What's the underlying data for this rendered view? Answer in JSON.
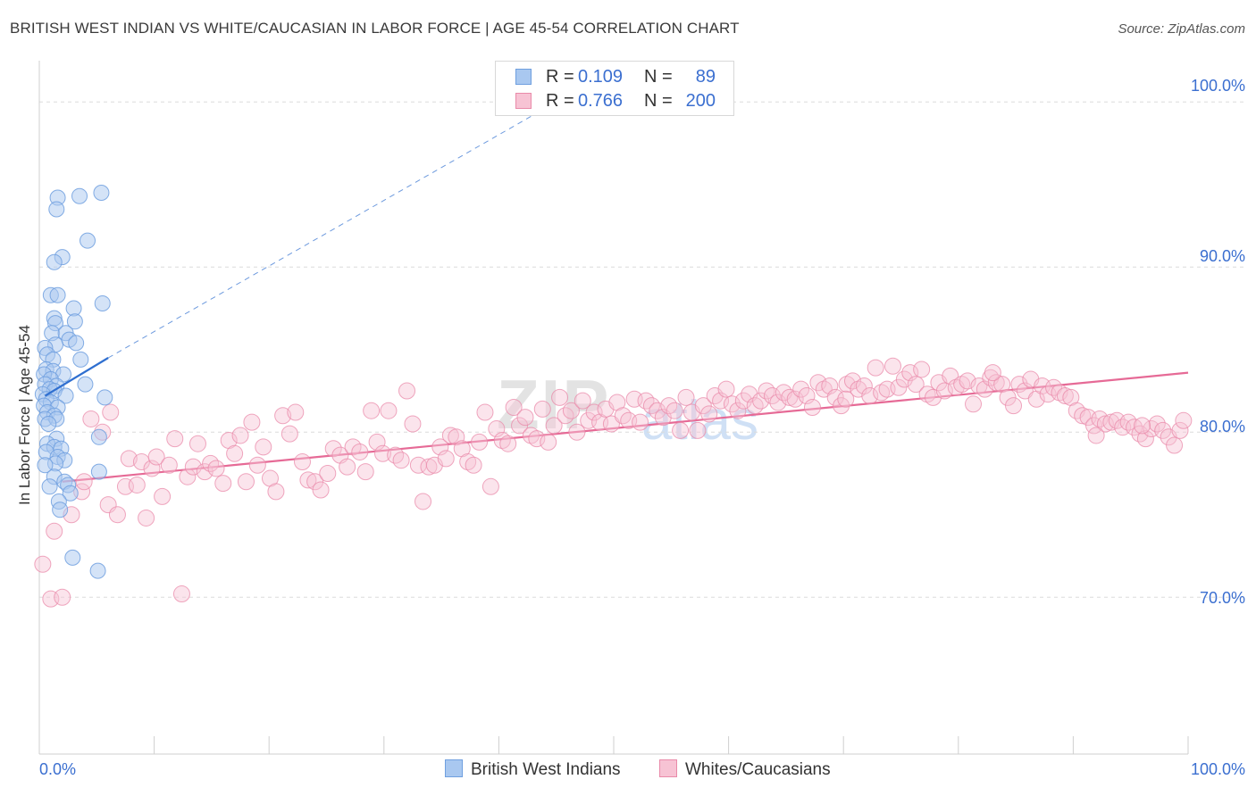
{
  "title": "BRITISH WEST INDIAN VS WHITE/CAUCASIAN IN LABOR FORCE | AGE 45-54 CORRELATION CHART",
  "source": "Source: ZipAtlas.com",
  "watermark": {
    "zip": "ZIP",
    "atlas": "atlas"
  },
  "legend_top": {
    "rows": [
      {
        "r_label": "R =",
        "r_value": "0.109",
        "n_label": "N =",
        "n_value": "89",
        "color": "#a9c8f0",
        "border": "#6f9fdf"
      },
      {
        "r_label": "R =",
        "r_value": "0.766",
        "n_label": "N =",
        "n_value": "200",
        "color": "#f7c3d4",
        "border": "#e98aa9"
      }
    ]
  },
  "legend_bottom": [
    {
      "label": "British West Indians",
      "color": "#a9c8f0",
      "border": "#6f9fdf"
    },
    {
      "label": "Whites/Caucasians",
      "color": "#f7c3d4",
      "border": "#e98aa9"
    }
  ],
  "chart_data": {
    "type": "scatter",
    "title": "BRITISH WEST INDIAN VS WHITE/CAUCASIAN IN LABOR FORCE | AGE 45-54 CORRELATION CHART",
    "xlabel": "",
    "ylabel": "In Labor Force | Age 45-54",
    "x_tick_labels": [
      "0.0%",
      "100.0%"
    ],
    "y_tick_labels": [
      "100.0%",
      "90.0%",
      "80.0%",
      "70.0%"
    ],
    "y_ticks": [
      100,
      90,
      80,
      70
    ],
    "xlim": [
      0,
      100
    ],
    "ylim": [
      60.5,
      102.5
    ],
    "grid": true,
    "colors": {
      "blue": "#6f9fdf",
      "blue_fill": "#a9c8f0",
      "pink": "#e98aa9",
      "pink_fill": "#f7c3d4",
      "blue_line": "#2f6fd0",
      "pink_line": "#e66a96"
    },
    "series": [
      {
        "name": "British West Indians",
        "r": 0.109,
        "n": 89,
        "trend": {
          "x": [
            0.5,
            6.0
          ],
          "y": [
            82.2,
            84.5
          ],
          "extension_to": [
            45,
            100
          ]
        },
        "points": [
          [
            1.6,
            94.2
          ],
          [
            3.5,
            94.3
          ],
          [
            5.4,
            94.5
          ],
          [
            1.5,
            93.5
          ],
          [
            4.2,
            91.6
          ],
          [
            2.0,
            90.6
          ],
          [
            1.3,
            90.3
          ],
          [
            1.0,
            88.3
          ],
          [
            1.6,
            88.3
          ],
          [
            5.5,
            87.8
          ],
          [
            3.0,
            87.5
          ],
          [
            1.3,
            86.9
          ],
          [
            1.4,
            86.6
          ],
          [
            3.1,
            86.7
          ],
          [
            1.1,
            86.0
          ],
          [
            2.3,
            86.0
          ],
          [
            2.6,
            85.6
          ],
          [
            3.2,
            85.4
          ],
          [
            1.4,
            85.3
          ],
          [
            0.5,
            85.1
          ],
          [
            0.7,
            84.7
          ],
          [
            1.2,
            84.4
          ],
          [
            3.6,
            84.4
          ],
          [
            0.6,
            83.8
          ],
          [
            1.2,
            83.7
          ],
          [
            0.4,
            83.5
          ],
          [
            2.1,
            83.5
          ],
          [
            1.0,
            83.2
          ],
          [
            0.5,
            82.9
          ],
          [
            1.5,
            82.8
          ],
          [
            0.9,
            82.6
          ],
          [
            4.0,
            82.9
          ],
          [
            1.3,
            82.5
          ],
          [
            0.3,
            82.3
          ],
          [
            2.3,
            82.2
          ],
          [
            0.6,
            82.0
          ],
          [
            5.7,
            82.1
          ],
          [
            1.0,
            81.8
          ],
          [
            0.4,
            81.6
          ],
          [
            1.6,
            81.5
          ],
          [
            0.7,
            81.2
          ],
          [
            1.3,
            81.0
          ],
          [
            0.5,
            80.8
          ],
          [
            1.5,
            80.8
          ],
          [
            0.8,
            80.5
          ],
          [
            5.2,
            79.7
          ],
          [
            1.5,
            79.6
          ],
          [
            0.7,
            79.3
          ],
          [
            1.3,
            79.1
          ],
          [
            1.9,
            79.0
          ],
          [
            0.6,
            78.8
          ],
          [
            1.6,
            78.5
          ],
          [
            2.2,
            78.3
          ],
          [
            1.4,
            78.1
          ],
          [
            0.5,
            78.0
          ],
          [
            5.2,
            77.6
          ],
          [
            1.3,
            77.3
          ],
          [
            2.2,
            77.0
          ],
          [
            2.5,
            76.8
          ],
          [
            0.9,
            76.7
          ],
          [
            2.7,
            76.3
          ],
          [
            1.7,
            75.8
          ],
          [
            1.8,
            75.3
          ],
          [
            2.9,
            72.4
          ],
          [
            5.1,
            71.6
          ]
        ]
      },
      {
        "name": "Whites/Caucasians",
        "r": 0.766,
        "n": 200,
        "trend": {
          "x": [
            2.0,
            100
          ],
          "y": [
            77.0,
            83.6
          ]
        },
        "points": [
          [
            0.3,
            72.0
          ],
          [
            1.0,
            69.9
          ],
          [
            2.0,
            70.0
          ],
          [
            1.3,
            74.0
          ],
          [
            2.8,
            75.0
          ],
          [
            3.7,
            76.4
          ],
          [
            3.9,
            77.0
          ],
          [
            4.5,
            80.8
          ],
          [
            5.5,
            80.0
          ],
          [
            6.2,
            81.2
          ],
          [
            6.0,
            75.6
          ],
          [
            6.8,
            75.0
          ],
          [
            7.5,
            76.7
          ],
          [
            7.8,
            78.4
          ],
          [
            8.5,
            76.8
          ],
          [
            8.9,
            78.2
          ],
          [
            9.3,
            74.8
          ],
          [
            9.8,
            77.8
          ],
          [
            10.2,
            78.5
          ],
          [
            10.7,
            76.1
          ],
          [
            11.3,
            78.0
          ],
          [
            11.8,
            79.6
          ],
          [
            12.4,
            70.2
          ],
          [
            12.9,
            77.3
          ],
          [
            13.4,
            77.9
          ],
          [
            13.8,
            79.3
          ],
          [
            14.4,
            77.6
          ],
          [
            14.9,
            78.1
          ],
          [
            15.4,
            77.8
          ],
          [
            16.0,
            76.9
          ],
          [
            16.5,
            79.5
          ],
          [
            17.0,
            78.7
          ],
          [
            17.5,
            79.8
          ],
          [
            18.0,
            77.0
          ],
          [
            18.5,
            80.6
          ],
          [
            19.0,
            78.0
          ],
          [
            19.5,
            79.1
          ],
          [
            20.1,
            77.2
          ],
          [
            20.6,
            76.4
          ],
          [
            21.2,
            81.0
          ],
          [
            21.8,
            79.9
          ],
          [
            22.3,
            81.2
          ],
          [
            22.9,
            78.2
          ],
          [
            23.4,
            77.1
          ],
          [
            24.0,
            77.0
          ],
          [
            24.5,
            76.5
          ],
          [
            25.1,
            77.5
          ],
          [
            25.6,
            79.0
          ],
          [
            26.2,
            78.6
          ],
          [
            26.8,
            77.9
          ],
          [
            27.3,
            79.1
          ],
          [
            27.9,
            78.8
          ],
          [
            28.4,
            77.6
          ],
          [
            28.9,
            81.3
          ],
          [
            29.4,
            79.4
          ],
          [
            29.9,
            78.7
          ],
          [
            30.4,
            81.3
          ],
          [
            31.0,
            78.6
          ],
          [
            31.5,
            78.3
          ],
          [
            32.0,
            82.5
          ],
          [
            32.5,
            80.5
          ],
          [
            33.0,
            78.0
          ],
          [
            33.4,
            75.8
          ],
          [
            33.9,
            77.9
          ],
          [
            34.4,
            78.0
          ],
          [
            34.9,
            79.1
          ],
          [
            35.4,
            78.4
          ],
          [
            35.8,
            79.8
          ],
          [
            36.3,
            79.7
          ],
          [
            36.8,
            79.0
          ],
          [
            37.3,
            78.2
          ],
          [
            37.8,
            78.0
          ],
          [
            38.3,
            79.4
          ],
          [
            38.8,
            81.2
          ],
          [
            39.3,
            76.7
          ],
          [
            39.8,
            80.2
          ],
          [
            40.3,
            79.5
          ],
          [
            40.8,
            79.3
          ],
          [
            41.3,
            81.5
          ],
          [
            41.8,
            80.4
          ],
          [
            42.3,
            80.9
          ],
          [
            42.8,
            79.8
          ],
          [
            43.3,
            79.6
          ],
          [
            43.8,
            81.4
          ],
          [
            44.3,
            79.4
          ],
          [
            44.8,
            80.4
          ],
          [
            45.3,
            82.1
          ],
          [
            45.8,
            81.0
          ],
          [
            46.3,
            81.3
          ],
          [
            46.8,
            80.0
          ],
          [
            47.3,
            81.9
          ],
          [
            47.8,
            80.7
          ],
          [
            48.3,
            81.2
          ],
          [
            48.8,
            80.6
          ],
          [
            49.3,
            81.4
          ],
          [
            49.8,
            80.5
          ],
          [
            50.3,
            81.8
          ],
          [
            50.8,
            81.0
          ],
          [
            51.3,
            80.7
          ],
          [
            51.8,
            82.0
          ],
          [
            52.3,
            80.6
          ],
          [
            52.8,
            81.9
          ],
          [
            53.3,
            81.6
          ],
          [
            53.8,
            81.3
          ],
          [
            54.3,
            80.9
          ],
          [
            54.8,
            81.6
          ],
          [
            55.3,
            81.3
          ],
          [
            55.8,
            80.1
          ],
          [
            56.3,
            82.1
          ],
          [
            56.8,
            81.2
          ],
          [
            57.3,
            80.1
          ],
          [
            57.8,
            81.6
          ],
          [
            58.3,
            81.1
          ],
          [
            58.8,
            82.2
          ],
          [
            59.3,
            81.9
          ],
          [
            59.8,
            82.6
          ],
          [
            60.3,
            81.7
          ],
          [
            60.8,
            81.3
          ],
          [
            61.3,
            81.9
          ],
          [
            61.8,
            82.3
          ],
          [
            62.3,
            81.6
          ],
          [
            62.8,
            81.9
          ],
          [
            63.3,
            82.5
          ],
          [
            63.8,
            82.2
          ],
          [
            64.3,
            81.8
          ],
          [
            64.8,
            82.4
          ],
          [
            65.3,
            82.1
          ],
          [
            65.8,
            82.0
          ],
          [
            66.3,
            82.6
          ],
          [
            66.8,
            82.2
          ],
          [
            67.3,
            81.5
          ],
          [
            67.8,
            83.0
          ],
          [
            68.3,
            82.6
          ],
          [
            68.8,
            82.8
          ],
          [
            69.3,
            82.1
          ],
          [
            69.8,
            81.6
          ],
          [
            70.3,
            82.9
          ],
          [
            70.8,
            83.1
          ],
          [
            71.3,
            82.6
          ],
          [
            71.8,
            82.8
          ],
          [
            72.3,
            82.2
          ],
          [
            72.8,
            83.9
          ],
          [
            73.3,
            82.4
          ],
          [
            73.8,
            82.6
          ],
          [
            74.3,
            84.0
          ],
          [
            74.8,
            82.7
          ],
          [
            75.3,
            83.2
          ],
          [
            75.8,
            83.6
          ],
          [
            76.3,
            82.9
          ],
          [
            76.8,
            83.8
          ],
          [
            77.3,
            82.3
          ],
          [
            77.8,
            82.1
          ],
          [
            78.3,
            83.0
          ],
          [
            78.8,
            82.5
          ],
          [
            79.3,
            83.4
          ],
          [
            79.8,
            82.7
          ],
          [
            80.3,
            82.9
          ],
          [
            80.8,
            83.1
          ],
          [
            81.3,
            81.7
          ],
          [
            81.8,
            82.8
          ],
          [
            82.3,
            82.6
          ],
          [
            82.8,
            83.3
          ],
          [
            83.3,
            83.0
          ],
          [
            83.8,
            82.9
          ],
          [
            84.3,
            82.1
          ],
          [
            84.8,
            81.6
          ],
          [
            85.3,
            82.9
          ],
          [
            85.8,
            82.5
          ],
          [
            86.3,
            83.2
          ],
          [
            86.8,
            82.0
          ],
          [
            87.3,
            82.8
          ],
          [
            87.8,
            82.3
          ],
          [
            88.3,
            82.7
          ],
          [
            88.8,
            82.4
          ],
          [
            89.3,
            82.2
          ],
          [
            89.8,
            82.1
          ],
          [
            90.3,
            81.3
          ],
          [
            90.8,
            81.0
          ],
          [
            91.3,
            80.9
          ],
          [
            91.8,
            80.4
          ],
          [
            92.3,
            80.8
          ],
          [
            92.8,
            80.5
          ],
          [
            93.3,
            80.6
          ],
          [
            93.8,
            80.7
          ],
          [
            94.3,
            80.3
          ],
          [
            94.8,
            80.6
          ],
          [
            95.3,
            80.3
          ],
          [
            95.8,
            79.9
          ],
          [
            96.3,
            79.6
          ],
          [
            96.8,
            80.2
          ],
          [
            97.3,
            80.5
          ],
          [
            97.8,
            80.1
          ],
          [
            98.3,
            79.7
          ],
          [
            98.8,
            79.2
          ],
          [
            99.3,
            80.1
          ],
          [
            99.6,
            80.7
          ],
          [
            92.0,
            79.8
          ],
          [
            70.2,
            82.0
          ],
          [
            83.0,
            83.6
          ],
          [
            96.0,
            80.4
          ]
        ]
      }
    ]
  }
}
